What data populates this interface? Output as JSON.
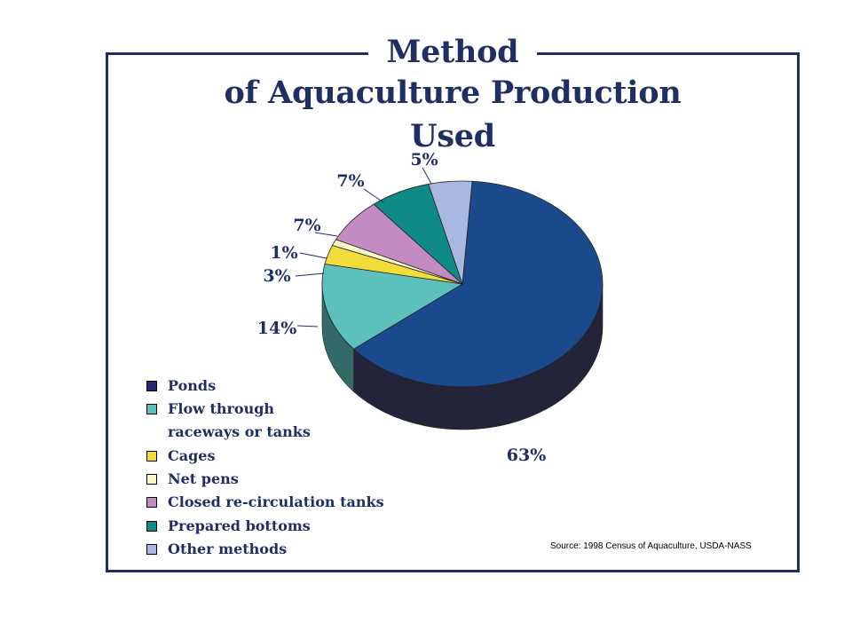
{
  "title_line1": "Method",
  "title_line2": "of Aquaculture Production Used",
  "source": "Source:  1998 Census of Aquaculture, USDA-NASS",
  "chart_data": {
    "type": "pie",
    "title": "Method of Aquaculture Production Used",
    "slices": [
      {
        "name": "Ponds",
        "value": 63,
        "label": "63%",
        "color": "#1a4a8c"
      },
      {
        "name": "Flow through raceways or tanks",
        "value": 14,
        "label": "14%",
        "color": "#5cc0bd"
      },
      {
        "name": "Cages",
        "value": 3,
        "label": "3%",
        "color": "#f2dc3a"
      },
      {
        "name": "Net pens",
        "value": 1,
        "label": "1%",
        "color": "#fbf6c8"
      },
      {
        "name": "Closed re-circulation tanks",
        "value": 7,
        "label": "7%",
        "color": "#c48bc2"
      },
      {
        "name": "Prepared bottoms",
        "value": 7,
        "label": "7%",
        "color": "#0f8a86"
      },
      {
        "name": "Other methods",
        "value": 5,
        "label": "5%",
        "color": "#a8b8e2"
      }
    ],
    "legend": [
      {
        "line1": "Ponds",
        "line2": "",
        "color": "#28286e"
      },
      {
        "line1": "Flow through",
        "line2": "raceways or tanks",
        "color": "#5cc0bd"
      },
      {
        "line1": "Cages",
        "line2": "",
        "color": "#f2dc3a"
      },
      {
        "line1": "Net pens",
        "line2": "",
        "color": "#fbf6c8"
      },
      {
        "line1": "Closed re-circulation tanks",
        "line2": "",
        "color": "#c48bc2"
      },
      {
        "line1": "Prepared bottoms",
        "line2": "",
        "color": "#0f8a86"
      },
      {
        "line1": "Other methods",
        "line2": "",
        "color": "#a8b8e2"
      }
    ],
    "legend_placement": "bottom-left"
  }
}
